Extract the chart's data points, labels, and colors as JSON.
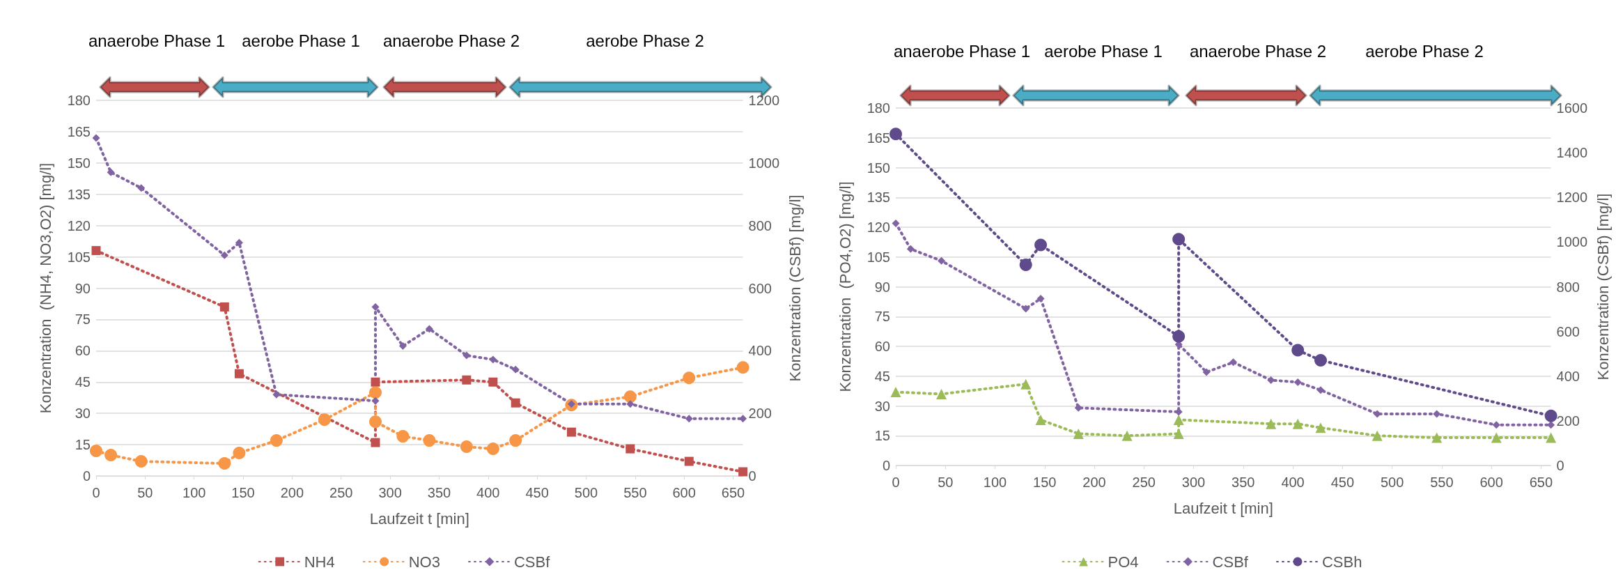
{
  "chart_data": [
    {
      "type": "line",
      "xlabel": "Laufzeit t [min]",
      "ylabel": "Konzentration  (NH4, NO3,O2) [mg/l]",
      "y2label": "Konzentration (CSBf) [mg/l]",
      "xlim": [
        0,
        660
      ],
      "xticks": [
        0,
        50,
        100,
        150,
        200,
        250,
        300,
        350,
        400,
        450,
        500,
        550,
        600,
        650
      ],
      "ylim": [
        0,
        180
      ],
      "yticks": [
        0,
        15,
        30,
        45,
        60,
        75,
        90,
        105,
        120,
        135,
        150,
        165,
        180
      ],
      "y2lim": [
        0,
        1200
      ],
      "y2ticks": [
        0,
        200,
        400,
        600,
        800,
        1000,
        1200
      ],
      "grid": "y",
      "legend": "bottom",
      "line_style": "dotted",
      "annotations": [
        "anaerobe Phase 1",
        "aerobe Phase 1",
        "anaerobe Phase 2",
        "aerobe Phase 2"
      ],
      "series": [
        {
          "name": "NH4",
          "color": "#c0504d",
          "marker": "square",
          "x": [
            0,
            131,
            146,
            285,
            285,
            378,
            405,
            428,
            485,
            545,
            605,
            660
          ],
          "values": [
            108,
            81,
            49,
            16,
            45,
            46,
            45,
            35,
            21,
            13,
            7,
            2
          ]
        },
        {
          "name": "NO3",
          "color": "#f79646",
          "marker": "circle",
          "x": [
            0,
            15,
            46,
            131,
            146,
            184,
            233,
            285,
            285,
            313,
            340,
            378,
            405,
            428,
            485,
            545,
            605,
            660
          ],
          "values": [
            12,
            10,
            7,
            6,
            11,
            17,
            27,
            40,
            26,
            19,
            17,
            14,
            13,
            17,
            34,
            38,
            47,
            52
          ]
        },
        {
          "name": "CSBf",
          "color": "#8064a2",
          "marker": "diamond",
          "axis": "y2",
          "x": [
            0,
            15,
            46,
            131,
            146,
            184,
            285,
            285,
            313,
            340,
            378,
            405,
            428,
            485,
            545,
            605,
            660
          ],
          "values": [
            1080,
            970,
            920,
            705,
            745,
            260,
            240,
            540,
            415,
            470,
            385,
            372,
            340,
            230,
            230,
            183,
            183
          ]
        }
      ]
    },
    {
      "type": "line",
      "xlabel": "Laufzeit t [min]",
      "ylabel": "Konzentration  (PO4,O2) [mg/l]",
      "y2label": "Konzentration (CSBf) [mg/l]",
      "xlim": [
        0,
        660
      ],
      "xticks": [
        0,
        50,
        100,
        150,
        200,
        250,
        300,
        350,
        400,
        450,
        500,
        550,
        600,
        650
      ],
      "ylim": [
        0,
        180
      ],
      "yticks": [
        0,
        15,
        30,
        45,
        60,
        75,
        90,
        105,
        120,
        135,
        150,
        165,
        180
      ],
      "y2lim": [
        0,
        1600
      ],
      "y2ticks": [
        0,
        200,
        400,
        600,
        800,
        1000,
        1200,
        1400,
        1600
      ],
      "grid": "y",
      "legend": "bottom",
      "line_style": "dotted",
      "annotations": [
        "anaerobe Phase 1",
        "aerobe Phase 1",
        "anaerobe Phase 2",
        "aerobe Phase 2"
      ],
      "series": [
        {
          "name": "PO4",
          "color": "#9bbb59",
          "marker": "triangle",
          "x": [
            0,
            46,
            131,
            146,
            184,
            233,
            285,
            285,
            378,
            405,
            428,
            485,
            545,
            605,
            660
          ],
          "values": [
            37,
            36,
            41,
            23,
            16,
            15,
            16,
            23,
            21,
            21,
            19,
            15,
            14,
            14,
            14
          ]
        },
        {
          "name": "CSBf",
          "color": "#8064a2",
          "marker": "diamond",
          "axis": "y2",
          "x": [
            0,
            15,
            46,
            131,
            146,
            184,
            285,
            285,
            313,
            340,
            378,
            405,
            428,
            485,
            545,
            605,
            660
          ],
          "values": [
            1084,
            969,
            916,
            702,
            747,
            258,
            240,
            542,
            418,
            462,
            382,
            373,
            338,
            231,
            231,
            182,
            182
          ]
        },
        {
          "name": "CSBh",
          "color": "#5f4b8b",
          "marker": "circle",
          "axis": "y2",
          "x": [
            0,
            131,
            146,
            285,
            285,
            405,
            428,
            660
          ],
          "values": [
            1484,
            898,
            987,
            578,
            1013,
            516,
            471,
            222
          ]
        }
      ]
    }
  ]
}
